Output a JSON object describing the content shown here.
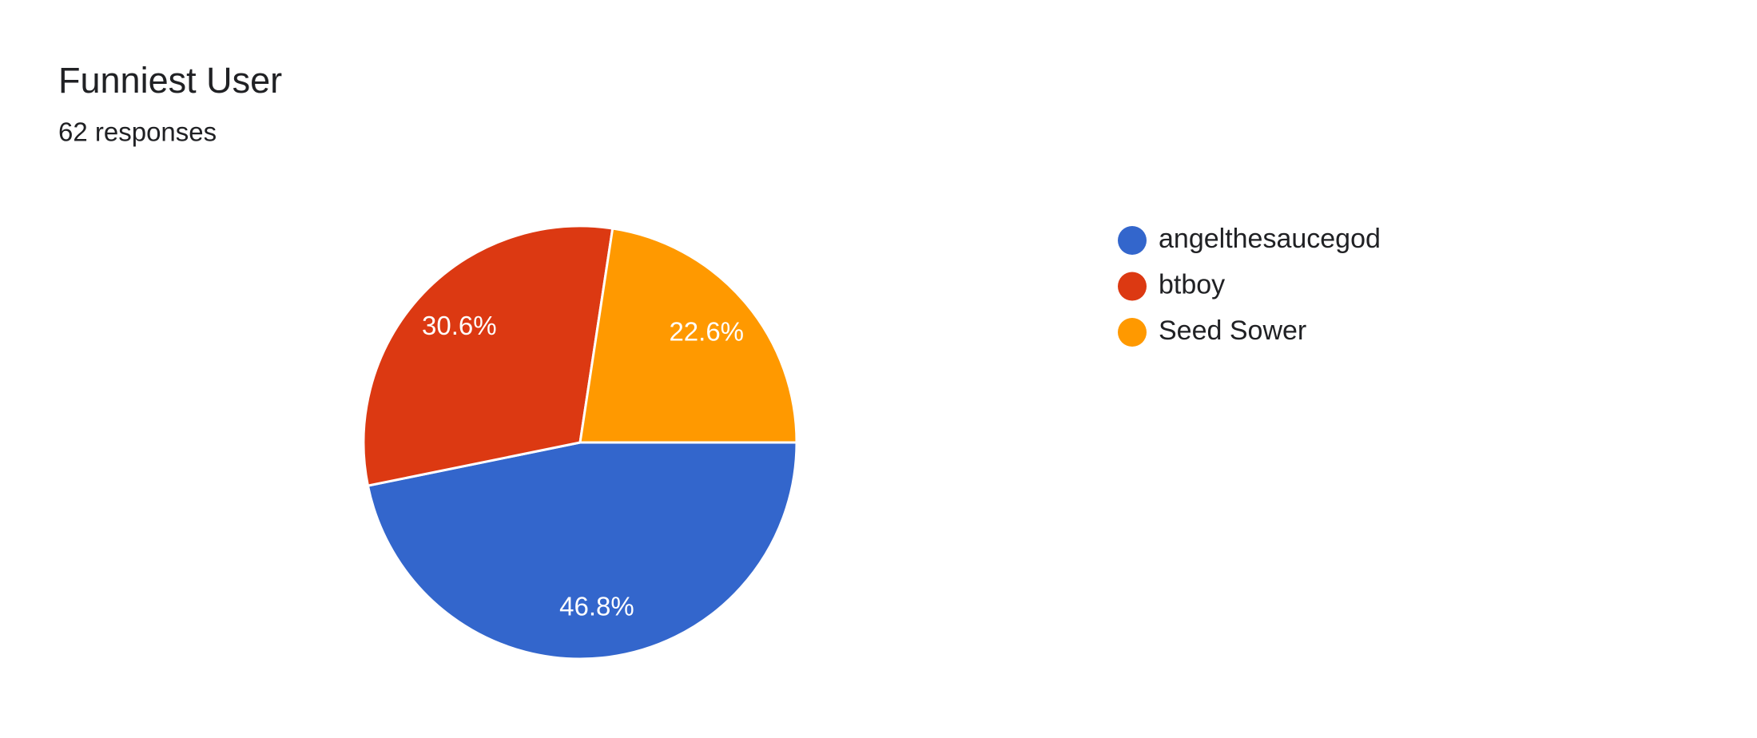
{
  "chart_data": {
    "type": "pie",
    "title": "Funniest User",
    "subtitle": "62 responses",
    "categories": [
      "angelthesaucegod",
      "btboy",
      "Seed Sower"
    ],
    "values": [
      46.8,
      30.6,
      22.6
    ],
    "value_labels": [
      "46.8%",
      "30.6%",
      "22.6%"
    ],
    "colors": [
      "#3366cc",
      "#dc3912",
      "#ff9900"
    ],
    "legend": "right"
  }
}
